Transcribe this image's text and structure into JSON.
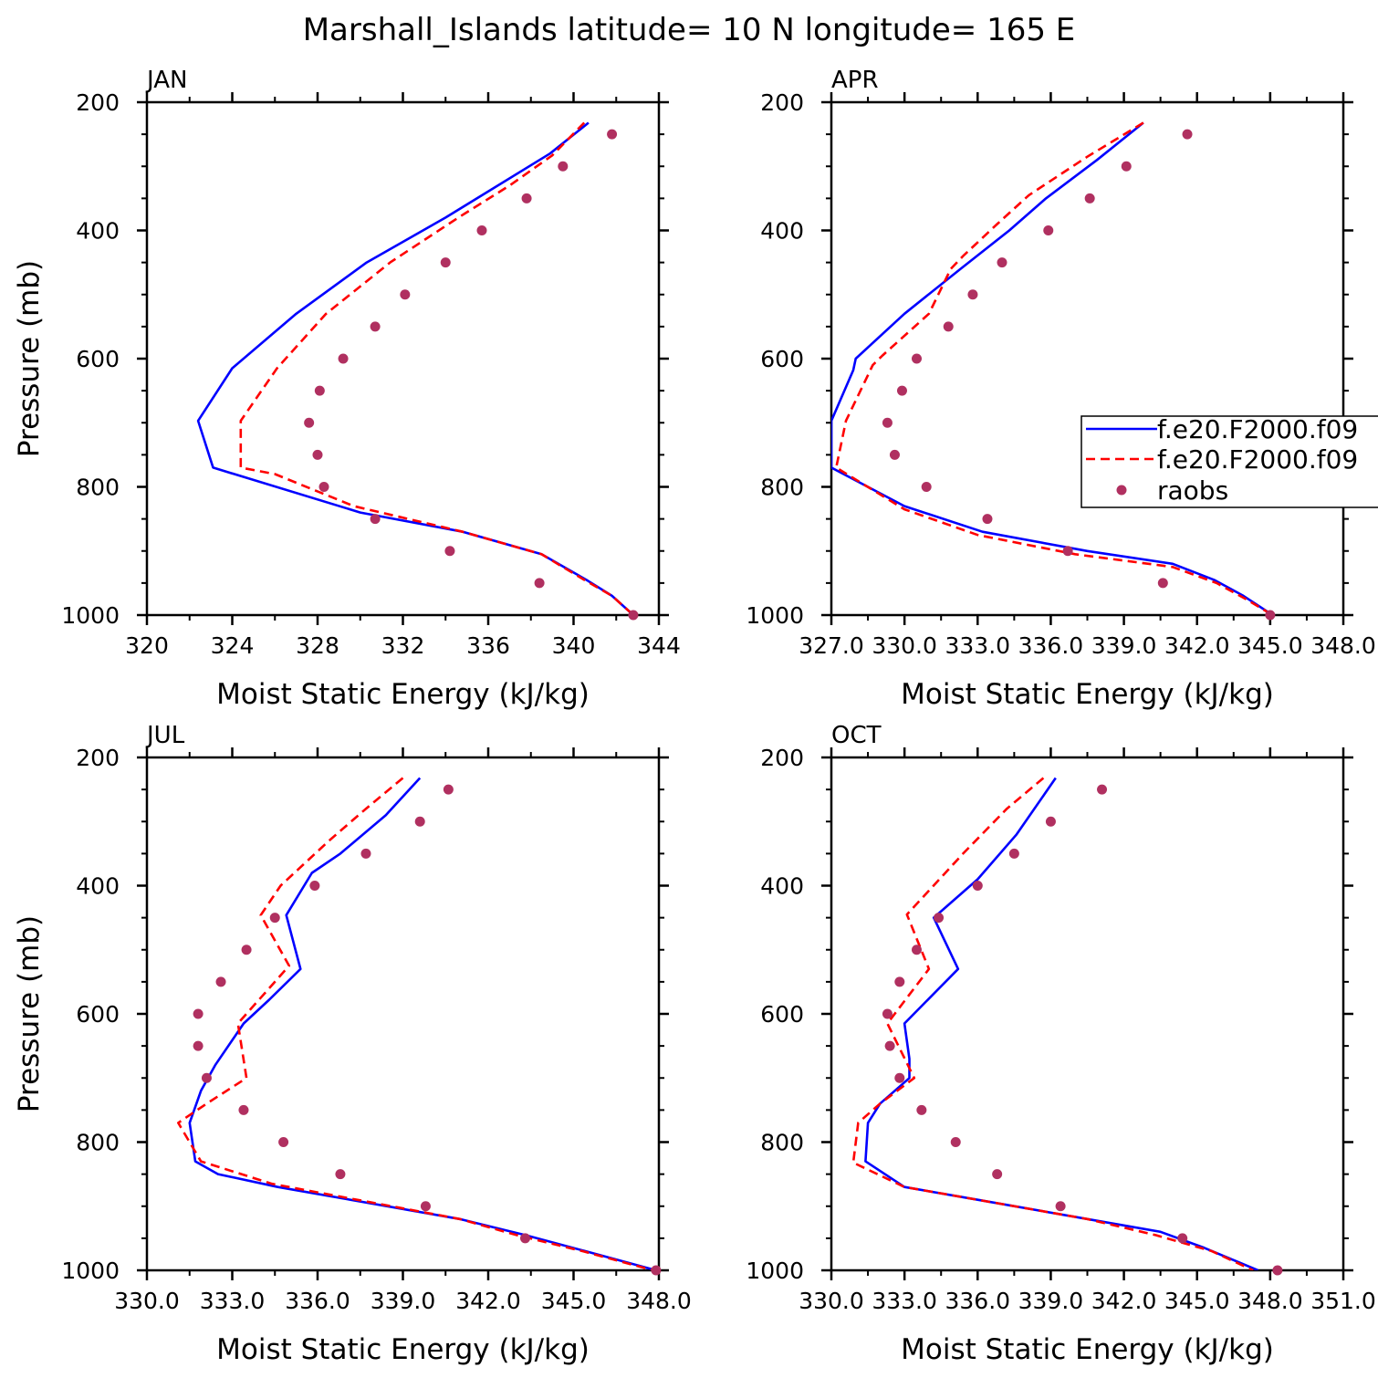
{
  "title": "Marshall_Islands  latitude= 10 N longitude= 165 E",
  "colors": {
    "model1": "#0000ff",
    "model2": "#ff0000",
    "obs": "#b03060",
    "axis": "#000000"
  },
  "legend": {
    "placement": "right",
    "entries": [
      {
        "label": "f.e20.F2000.f09",
        "style": "solid-line",
        "color": "#0000ff"
      },
      {
        "label": "f.e20.F2000.f09",
        "style": "dashed-line",
        "color": "#ff0000"
      },
      {
        "label": "raobs",
        "style": "dot",
        "color": "#b03060"
      }
    ]
  },
  "chart_data": [
    {
      "type": "line",
      "title": "JAN",
      "xlabel": "Moist Static Energy (kJ/kg)",
      "ylabel": "Pressure (mb)",
      "xlim": [
        320,
        344
      ],
      "ylim": [
        1000,
        200
      ],
      "y_inverted": true,
      "xticks": [
        "320",
        "324",
        "328",
        "332",
        "336",
        "340",
        "344"
      ],
      "yticks": [
        "200",
        "400",
        "600",
        "800",
        "1000"
      ],
      "series": [
        {
          "name": "f.e20.F2000.f09",
          "style": "solid",
          "points": [
            [
              340.7,
              232
            ],
            [
              338.9,
              280
            ],
            [
              334.0,
              380
            ],
            [
              330.3,
              450
            ],
            [
              327.0,
              530
            ],
            [
              324.0,
              615
            ],
            [
              322.4,
              697
            ],
            [
              323.1,
              770
            ],
            [
              330.0,
              840
            ],
            [
              334.8,
              870
            ],
            [
              338.5,
              905
            ],
            [
              340.6,
              945
            ],
            [
              341.8,
              970
            ],
            [
              342.8,
              1000
            ]
          ]
        },
        {
          "name": "f.e20.F2000.f09",
          "style": "dashed",
          "points": [
            [
              340.5,
              232
            ],
            [
              339.0,
              283
            ],
            [
              337.0,
              330
            ],
            [
              334.6,
              380
            ],
            [
              331.4,
              450
            ],
            [
              328.4,
              530
            ],
            [
              326.1,
              615
            ],
            [
              324.4,
              697
            ],
            [
              324.4,
              770
            ],
            [
              326.0,
              780
            ],
            [
              329.7,
              830
            ],
            [
              334.8,
              870
            ],
            [
              338.5,
              905
            ],
            [
              340.5,
              945
            ],
            [
              341.8,
              970
            ],
            [
              342.8,
              1000
            ]
          ]
        },
        {
          "name": "raobs",
          "style": "markers",
          "points": [
            [
              341.8,
              250
            ],
            [
              339.5,
              300
            ],
            [
              337.8,
              350
            ],
            [
              335.7,
              400
            ],
            [
              334.0,
              450
            ],
            [
              332.1,
              500
            ],
            [
              330.7,
              550
            ],
            [
              329.2,
              600
            ],
            [
              328.1,
              650
            ],
            [
              327.6,
              700
            ],
            [
              328.0,
              750
            ],
            [
              328.3,
              800
            ],
            [
              330.7,
              850
            ],
            [
              334.2,
              900
            ],
            [
              338.4,
              950
            ],
            [
              342.8,
              1000
            ]
          ]
        }
      ]
    },
    {
      "type": "line",
      "title": "APR",
      "xlabel": "Moist Static Energy (kJ/kg)",
      "ylabel": "",
      "xlim": [
        327.0,
        348.0
      ],
      "ylim": [
        1000,
        200
      ],
      "y_inverted": true,
      "xticks": [
        "327.0",
        "330.0",
        "333.0",
        "336.0",
        "339.0",
        "342.0",
        "345.0",
        "348.0"
      ],
      "yticks": [
        "200",
        "400",
        "600",
        "800",
        "1000"
      ],
      "series": [
        {
          "name": "f.e20.F2000.f09",
          "style": "solid",
          "points": [
            [
              339.8,
              232
            ],
            [
              337.9,
              290
            ],
            [
              335.8,
              350
            ],
            [
              334.3,
              400
            ],
            [
              332.3,
              460
            ],
            [
              330.0,
              530
            ],
            [
              328.0,
              600
            ],
            [
              327.9,
              618
            ],
            [
              327.0,
              697
            ],
            [
              327.0,
              770
            ],
            [
              330.0,
              830
            ],
            [
              333.2,
              870
            ],
            [
              337.5,
              900
            ],
            [
              341.0,
              920
            ],
            [
              342.7,
              945
            ],
            [
              343.9,
              970
            ],
            [
              345.1,
              1000
            ]
          ]
        },
        {
          "name": "f.e20.F2000.f09",
          "style": "dashed",
          "points": [
            [
              339.8,
              232
            ],
            [
              337.5,
              285
            ],
            [
              335.1,
              345
            ],
            [
              333.8,
              390
            ],
            [
              332.4,
              440
            ],
            [
              331.9,
              460
            ],
            [
              331.0,
              530
            ],
            [
              329.1,
              595
            ],
            [
              328.7,
              610
            ],
            [
              327.6,
              697
            ],
            [
              327.2,
              770
            ],
            [
              330.0,
              835
            ],
            [
              333.0,
              875
            ],
            [
              337.0,
              905
            ],
            [
              341.0,
              925
            ],
            [
              342.8,
              950
            ],
            [
              344.0,
              975
            ],
            [
              345.1,
              1000
            ]
          ]
        },
        {
          "name": "raobs",
          "style": "markers",
          "points": [
            [
              341.6,
              250
            ],
            [
              339.1,
              300
            ],
            [
              337.6,
              350
            ],
            [
              335.9,
              400
            ],
            [
              334.0,
              450
            ],
            [
              332.8,
              500
            ],
            [
              331.8,
              550
            ],
            [
              330.5,
              600
            ],
            [
              329.9,
              650
            ],
            [
              329.3,
              700
            ],
            [
              329.6,
              750
            ],
            [
              330.9,
              800
            ],
            [
              333.4,
              850
            ],
            [
              336.7,
              900
            ],
            [
              340.6,
              950
            ],
            [
              345.0,
              1000
            ]
          ]
        }
      ]
    },
    {
      "type": "line",
      "title": "JUL",
      "xlabel": "Moist Static Energy (kJ/kg)",
      "ylabel": "Pressure (mb)",
      "xlim": [
        330.0,
        348.0
      ],
      "ylim": [
        1000,
        200
      ],
      "y_inverted": true,
      "xticks": [
        "330.0",
        "333.0",
        "336.0",
        "339.0",
        "342.0",
        "345.0",
        "348.0"
      ],
      "yticks": [
        "200",
        "400",
        "600",
        "800",
        "1000"
      ],
      "series": [
        {
          "name": "f.e20.F2000.f09",
          "style": "solid",
          "points": [
            [
              339.6,
              232
            ],
            [
              338.4,
              290
            ],
            [
              336.8,
              350
            ],
            [
              335.8,
              380
            ],
            [
              334.9,
              446
            ],
            [
              335.4,
              530
            ],
            [
              334.3,
              578
            ],
            [
              333.4,
              615
            ],
            [
              332.4,
              680
            ],
            [
              331.9,
              720
            ],
            [
              331.5,
              770
            ],
            [
              331.7,
              830
            ],
            [
              332.5,
              850
            ],
            [
              334.6,
              870
            ],
            [
              341.0,
              920
            ],
            [
              343.3,
              945
            ],
            [
              345.4,
              970
            ],
            [
              347.9,
              1000
            ]
          ]
        },
        {
          "name": "f.e20.F2000.f09",
          "style": "dashed",
          "points": [
            [
              339.0,
              232
            ],
            [
              337.7,
              280
            ],
            [
              336.4,
              330
            ],
            [
              334.7,
              400
            ],
            [
              334.0,
              446
            ],
            [
              335.0,
              525
            ],
            [
              333.2,
              615
            ],
            [
              333.5,
              700
            ],
            [
              332.1,
              740
            ],
            [
              331.1,
              770
            ],
            [
              331.9,
              830
            ],
            [
              334.4,
              865
            ],
            [
              341.0,
              920
            ],
            [
              343.0,
              945
            ],
            [
              345.3,
              970
            ],
            [
              347.8,
              1000
            ]
          ]
        },
        {
          "name": "raobs",
          "style": "markers",
          "points": [
            [
              340.6,
              250
            ],
            [
              339.6,
              300
            ],
            [
              337.7,
              350
            ],
            [
              335.9,
              400
            ],
            [
              334.5,
              450
            ],
            [
              333.5,
              500
            ],
            [
              332.6,
              550
            ],
            [
              331.8,
              600
            ],
            [
              331.8,
              650
            ],
            [
              332.1,
              700
            ],
            [
              333.4,
              750
            ],
            [
              334.8,
              800
            ],
            [
              336.8,
              850
            ],
            [
              339.8,
              900
            ],
            [
              343.3,
              950
            ],
            [
              347.9,
              1000
            ]
          ]
        }
      ]
    },
    {
      "type": "line",
      "title": "OCT",
      "xlabel": "Moist Static Energy (kJ/kg)",
      "ylabel": "",
      "xlim": [
        330.0,
        351.0
      ],
      "ylim": [
        1000,
        200
      ],
      "y_inverted": true,
      "xticks": [
        "330.0",
        "333.0",
        "336.0",
        "339.0",
        "342.0",
        "345.0",
        "348.0",
        "351.0"
      ],
      "yticks": [
        "200",
        "400",
        "600",
        "800",
        "1000"
      ],
      "series": [
        {
          "name": "f.e20.F2000.f09",
          "style": "solid",
          "points": [
            [
              339.2,
              232
            ],
            [
              337.6,
              320
            ],
            [
              336.0,
              390
            ],
            [
              334.2,
              450
            ],
            [
              335.2,
              530
            ],
            [
              333.0,
              615
            ],
            [
              333.2,
              670
            ],
            [
              333.2,
              700
            ],
            [
              332.0,
              740
            ],
            [
              331.5,
              770
            ],
            [
              331.4,
              830
            ],
            [
              333.0,
              870
            ],
            [
              336.0,
              890
            ],
            [
              340.5,
              920
            ],
            [
              343.5,
              940
            ],
            [
              345.3,
              965
            ],
            [
              347.5,
              1000
            ]
          ]
        },
        {
          "name": "f.e20.F2000.f09",
          "style": "dashed",
          "points": [
            [
              338.7,
              232
            ],
            [
              337.2,
              280
            ],
            [
              335.4,
              350
            ],
            [
              333.1,
              445
            ],
            [
              334.0,
              530
            ],
            [
              332.3,
              615
            ],
            [
              333.4,
              700
            ],
            [
              332.0,
              740
            ],
            [
              331.1,
              770
            ],
            [
              330.9,
              832
            ],
            [
              333.0,
              870
            ],
            [
              336.0,
              890
            ],
            [
              340.5,
              920
            ],
            [
              343.3,
              945
            ],
            [
              345.6,
              970
            ],
            [
              347.3,
              1000
            ]
          ]
        },
        {
          "name": "raobs",
          "style": "markers",
          "points": [
            [
              341.1,
              250
            ],
            [
              339.0,
              300
            ],
            [
              337.5,
              350
            ],
            [
              336.0,
              400
            ],
            [
              334.4,
              450
            ],
            [
              333.5,
              500
            ],
            [
              332.8,
              550
            ],
            [
              332.3,
              600
            ],
            [
              332.4,
              650
            ],
            [
              332.8,
              700
            ],
            [
              333.7,
              750
            ],
            [
              335.1,
              800
            ],
            [
              336.8,
              850
            ],
            [
              339.4,
              900
            ],
            [
              344.4,
              950
            ],
            [
              348.3,
              1000
            ]
          ]
        }
      ]
    }
  ]
}
